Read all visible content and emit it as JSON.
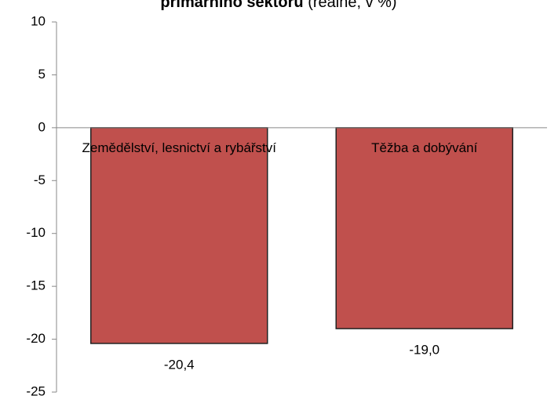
{
  "chart_data": {
    "type": "bar",
    "title": "primárního sektoru",
    "title_suffix": "(reálně, v %)",
    "categories": [
      "Zemědělství, lesnictví a rybářství",
      "Těžba a dobývání"
    ],
    "values": [
      -20.4,
      -19.0
    ],
    "value_labels": [
      "-20,4",
      "-19,0"
    ],
    "color": "#c0504d",
    "ylim": [
      -25,
      10
    ],
    "yticks": [
      -25,
      -20,
      -15,
      -10,
      -5,
      0,
      5,
      10
    ],
    "grid": false
  }
}
